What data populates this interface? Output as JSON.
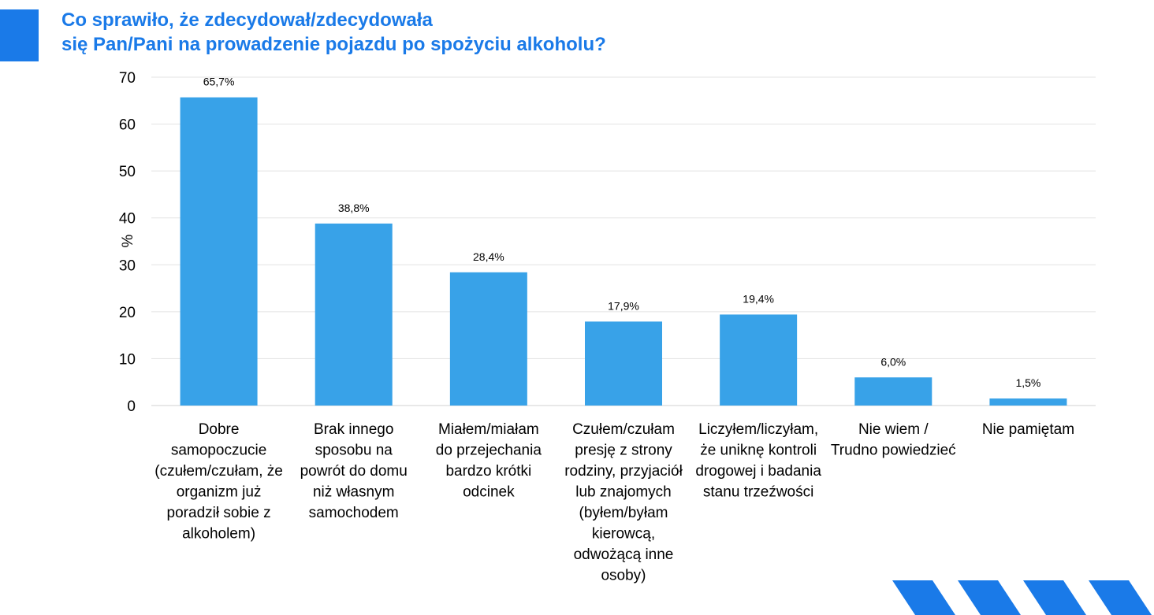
{
  "page": {
    "title_line1": "Co sprawiło, że zdecydował/zdecydowała",
    "title_line2": "się Pan/Pani na prowadzenie pojazdu po spożyciu alkoholu?",
    "accent_color": "#1a7ae8"
  },
  "chart_data": {
    "type": "bar",
    "title": "Co sprawiło, że zdecydował/zdecydowała się Pan/Pani na prowadzenie pojazdu po spożyciu alkoholu?",
    "xlabel": "",
    "ylabel": "%",
    "ylim": [
      0,
      70
    ],
    "yticks": [
      0,
      10,
      20,
      30,
      40,
      50,
      60,
      70
    ],
    "grid": true,
    "bar_color": "#38a2e8",
    "categories": [
      [
        "Dobre",
        "samopoczucie",
        "(czułem/czułam, że",
        "organizm już",
        "poradził sobie z",
        "alkoholem)"
      ],
      [
        "Brak innego",
        "sposobu na",
        "powrót do domu",
        "niż własnym",
        "samochodem"
      ],
      [
        "Miałem/miałam",
        "do przejechania",
        "bardzo krótki",
        "odcinek"
      ],
      [
        "Czułem/czułam",
        "presję z strony",
        "rodziny, przyjaciół",
        "lub znajomych",
        "(byłem/byłam",
        "kierowcą,",
        "odwożącą inne",
        "osoby)"
      ],
      [
        "Liczyłem/liczyłam,",
        "że uniknę kontroli",
        "drogowej i badania",
        "stanu trzeźwości"
      ],
      [
        "Nie wiem /",
        "Trudno powiedzieć"
      ],
      [
        "Nie pamiętam"
      ]
    ],
    "values": [
      65.7,
      38.8,
      28.4,
      17.9,
      19.4,
      6.0,
      1.5
    ],
    "data_labels": [
      "65,7%",
      "38,8%",
      "28,4%",
      "17,9%",
      "19,4%",
      "6,0%",
      "1,5%"
    ]
  }
}
